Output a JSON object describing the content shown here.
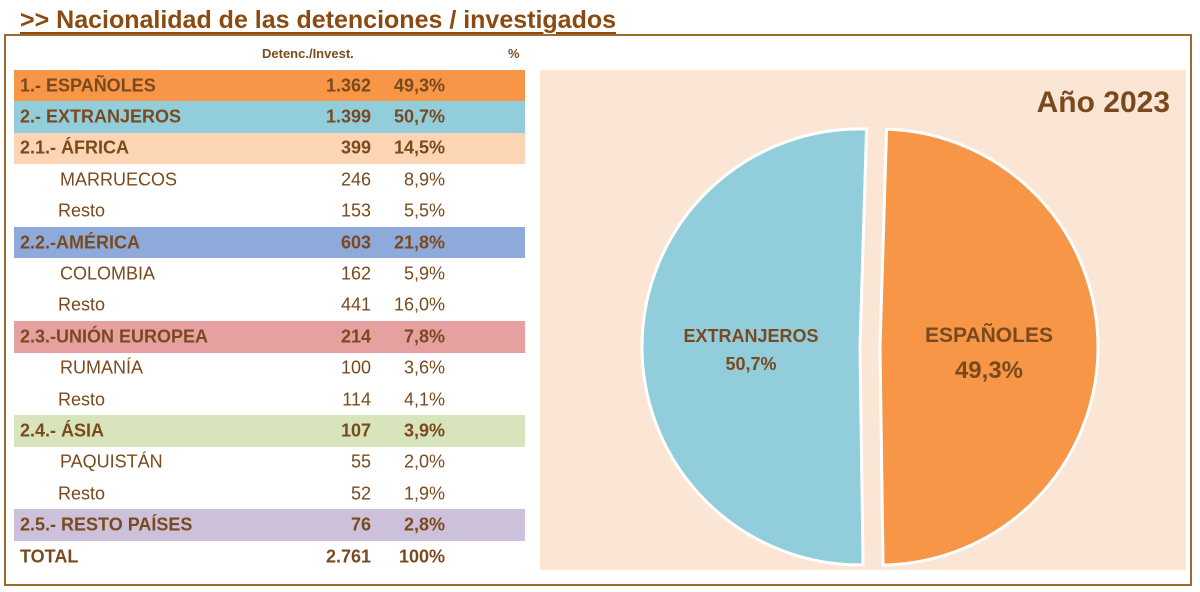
{
  "title": ">> Nacionalidad de las detenciones / investigados",
  "table": {
    "col_detenc": "Detenc./Invest.",
    "col_pct": "%",
    "rows": [
      {
        "label": "1.- ESPAÑOLES",
        "value": "1.362",
        "pct": "49,3%",
        "style": "major",
        "color": "#f79646"
      },
      {
        "label": "2.- EXTRANJEROS",
        "value": "1.399",
        "pct": "50,7%",
        "style": "major",
        "color": "#92cddc"
      },
      {
        "label": "2.1.- ÁFRICA",
        "value": "399",
        "pct": "14,5%",
        "style": "major",
        "color": "#fcd5b4"
      },
      {
        "label": "MARRUECOS",
        "value": "246",
        "pct": "8,9%",
        "style": "sub",
        "color": ""
      },
      {
        "label": "Resto",
        "value": "153",
        "pct": "5,5%",
        "style": "rest",
        "color": ""
      },
      {
        "label": "2.2.-AMÉRICA",
        "value": "603",
        "pct": "21,8%",
        "style": "major",
        "color": "#8eaadb"
      },
      {
        "label": "COLOMBIA",
        "value": "162",
        "pct": "5,9%",
        "style": "sub",
        "color": ""
      },
      {
        "label": "Resto",
        "value": "441",
        "pct": "16,0%",
        "style": "rest",
        "color": ""
      },
      {
        "label": "2.3.-UNIÓN EUROPEA",
        "value": "214",
        "pct": "7,8%",
        "style": "major",
        "color": "#e6a0a0"
      },
      {
        "label": "RUMANÍA",
        "value": "100",
        "pct": "3,6%",
        "style": "sub",
        "color": ""
      },
      {
        "label": "Resto",
        "value": "114",
        "pct": "4,1%",
        "style": "rest",
        "color": ""
      },
      {
        "label": "2.4.- ÁSIA",
        "value": "107",
        "pct": "3,9%",
        "style": "major",
        "color": "#d8e4bc"
      },
      {
        "label": "PAQUISTÁN",
        "value": "55",
        "pct": "2,0%",
        "style": "sub",
        "color": ""
      },
      {
        "label": "Resto",
        "value": "52",
        "pct": "1,9%",
        "style": "rest",
        "color": ""
      },
      {
        "label": "2.5.- RESTO PAÍSES",
        "value": "76",
        "pct": "2,8%",
        "style": "major",
        "color": "#ccc0da"
      },
      {
        "label": "TOTAL",
        "value": "2.761",
        "pct": "100%",
        "style": "major",
        "color": ""
      }
    ]
  },
  "chart_data": {
    "type": "pie",
    "title": "Año 2023",
    "slices": [
      {
        "label": "ESPAÑOLES",
        "pct_label": "49,3%",
        "value": 49.3,
        "color": "#f79646"
      },
      {
        "label": "EXTRANJEROS",
        "pct_label": "50,7%",
        "value": 50.7,
        "color": "#92cddc"
      }
    ],
    "background": "#fbe6d5"
  }
}
